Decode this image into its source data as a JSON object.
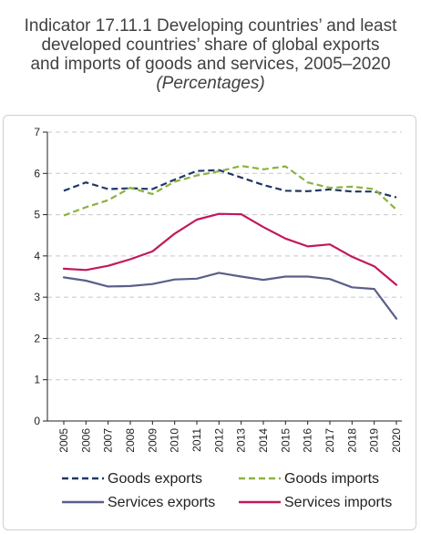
{
  "title": {
    "line1": "Indicator 17.11.1 Developing countries’ and least",
    "line2": "developed countries’ share of global exports",
    "line3": "and imports of goods and services, 2005–2020",
    "subtitle": "(Percentages)"
  },
  "chart_data": {
    "type": "line",
    "x": [
      "2005",
      "2006",
      "2007",
      "2008",
      "2009",
      "2010",
      "2011",
      "2012",
      "2013",
      "2014",
      "2015",
      "2016",
      "2017",
      "2018",
      "2019",
      "2020"
    ],
    "ylim": [
      0,
      7
    ],
    "yticks": [
      "0",
      "1",
      "2",
      "3",
      "4",
      "5",
      "6",
      "7"
    ],
    "grid": true,
    "legend_position": "bottom",
    "series": [
      {
        "name": "Goods exports",
        "color": "#1f3864",
        "dash": "dashed",
        "values": [
          5.58,
          5.78,
          5.62,
          5.64,
          5.62,
          5.85,
          6.06,
          6.08,
          5.9,
          5.72,
          5.58,
          5.57,
          5.61,
          5.56,
          5.56,
          5.42
        ]
      },
      {
        "name": "Goods imports",
        "color": "#8bb23f",
        "dash": "dashed",
        "values": [
          4.98,
          5.18,
          5.35,
          5.65,
          5.5,
          5.8,
          5.95,
          6.05,
          6.18,
          6.1,
          6.17,
          5.78,
          5.65,
          5.68,
          5.62,
          5.12
        ]
      },
      {
        "name": "Services exports",
        "color": "#5b5f8a",
        "dash": "solid",
        "values": [
          3.48,
          3.4,
          3.26,
          3.27,
          3.32,
          3.43,
          3.45,
          3.59,
          3.5,
          3.42,
          3.5,
          3.5,
          3.44,
          3.24,
          3.2,
          2.48
        ]
      },
      {
        "name": "Services imports",
        "color": "#c2185b",
        "dash": "solid",
        "values": [
          3.69,
          3.66,
          3.76,
          3.92,
          4.11,
          4.54,
          4.88,
          5.02,
          5.01,
          4.7,
          4.42,
          4.23,
          4.28,
          3.98,
          3.75,
          3.3
        ]
      }
    ]
  }
}
